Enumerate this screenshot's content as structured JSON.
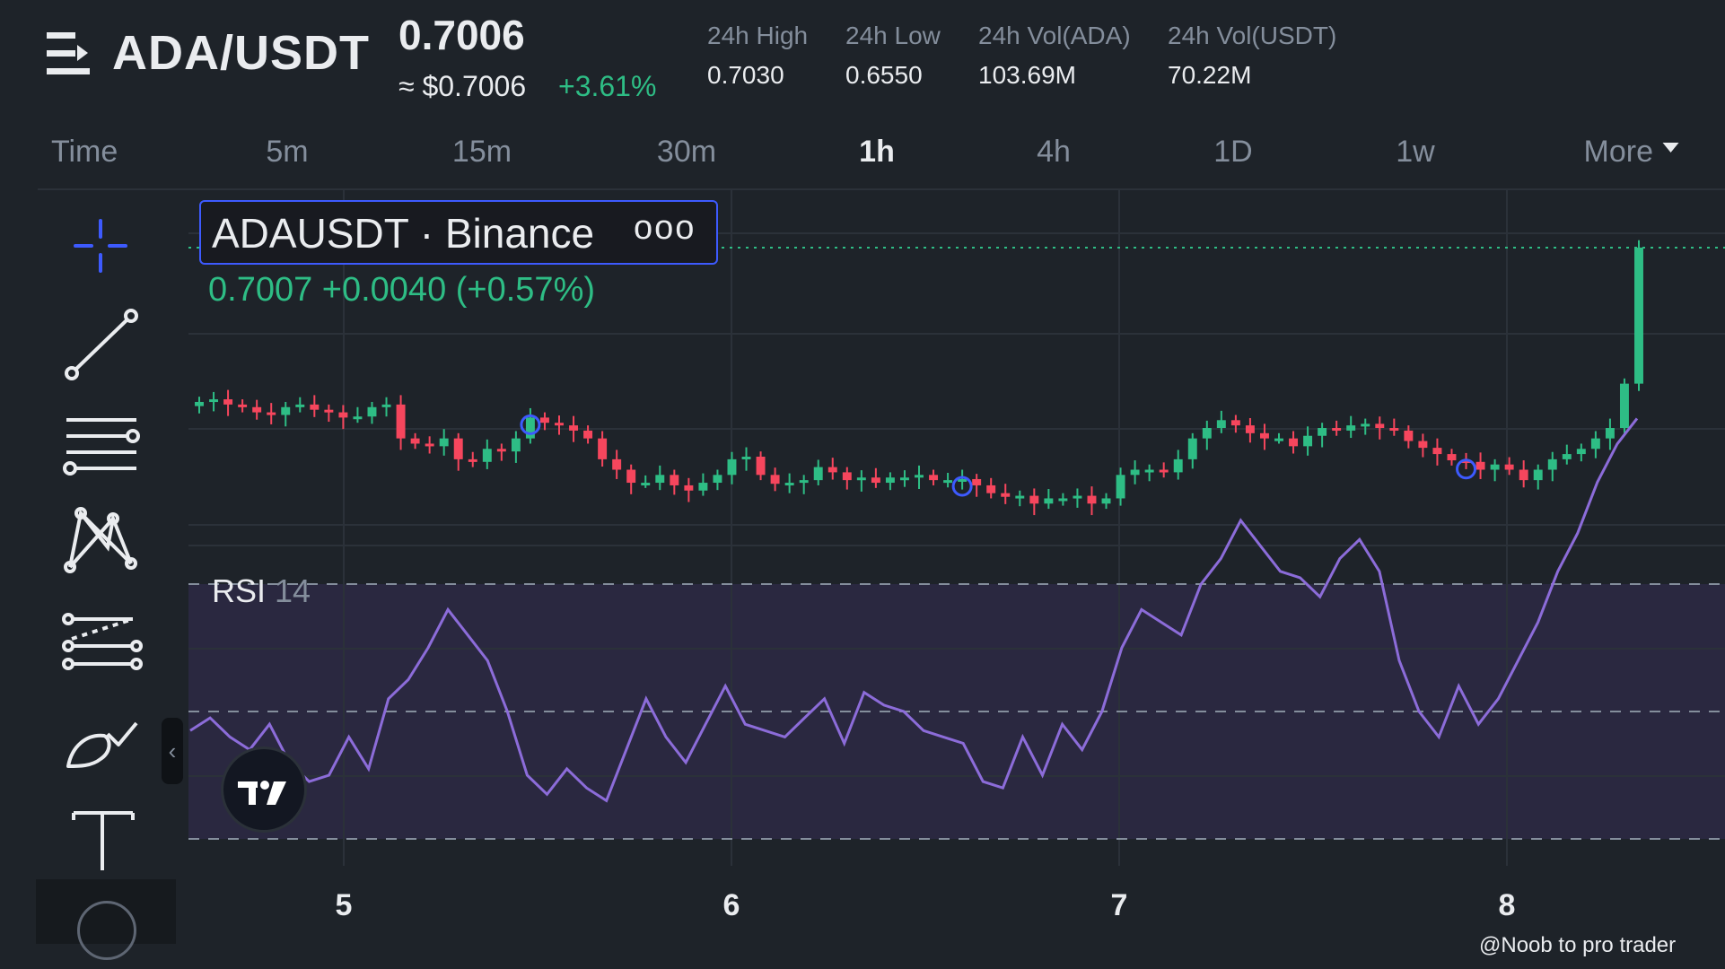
{
  "header": {
    "pair": "ADA/USDT",
    "last_price": "0.7006",
    "usd_price": "≈ $0.7006",
    "change_pct": "+3.61%",
    "stats": [
      {
        "label": "24h High",
        "value": "0.7030"
      },
      {
        "label": "24h Low",
        "value": "0.6550"
      },
      {
        "label": "24h Vol(ADA)",
        "value": "103.69M"
      },
      {
        "label": "24h Vol(USDT)",
        "value": "70.22M"
      }
    ]
  },
  "timeframes": {
    "items": [
      "Time",
      "5m",
      "15m",
      "30m",
      "1h",
      "4h",
      "1D",
      "1w",
      "More"
    ],
    "active": "1h"
  },
  "toolbar": {
    "tools": [
      "crosshair-icon",
      "trend-line-icon",
      "horizontal-lines-icon",
      "pattern-icon",
      "fib-lines-icon",
      "brush-icon",
      "text-icon"
    ],
    "collapse_glyph": "‹"
  },
  "chart": {
    "legend_symbol": "ADAUSDT · Binance",
    "legend_more": "ooo",
    "ohlc_readout": "0.7007  +0.0040 (+0.57%)",
    "rsi_label": "RSI",
    "rsi_length": "14",
    "date_labels": [
      "5",
      "6",
      "7",
      "8"
    ],
    "watermark": "@Noob to pro trader",
    "colors": {
      "up": "#2ebd85",
      "down": "#f6465d",
      "rsi": "#8c6cd9",
      "rsi_band": "#2a2840",
      "price_line": "#2ebd85"
    }
  },
  "chart_data": [
    {
      "type": "candlestick",
      "title": "ADAUSDT · Binance",
      "interval": "1h",
      "x_ticks": [
        "5",
        "6",
        "7",
        "8"
      ],
      "closes": [
        0.671,
        0.6715,
        0.6705,
        0.67,
        0.669,
        0.6685,
        0.67,
        0.6705,
        0.6695,
        0.669,
        0.668,
        0.6682,
        0.67,
        0.6705,
        0.664,
        0.663,
        0.6625,
        0.664,
        0.66,
        0.6595,
        0.662,
        0.6615,
        0.664,
        0.668,
        0.667,
        0.6665,
        0.6655,
        0.664,
        0.66,
        0.658,
        0.6555,
        0.6555,
        0.657,
        0.655,
        0.654,
        0.6555,
        0.657,
        0.66,
        0.6605,
        0.657,
        0.6553,
        0.6555,
        0.656,
        0.6585,
        0.6575,
        0.656,
        0.6565,
        0.6555,
        0.6565,
        0.6565,
        0.657,
        0.656,
        0.656,
        0.6562,
        0.655,
        0.6535,
        0.6528,
        0.653,
        0.6515,
        0.6525,
        0.6525,
        0.653,
        0.6515,
        0.6525,
        0.657,
        0.658,
        0.658,
        0.6575,
        0.66,
        0.664,
        0.666,
        0.6675,
        0.6665,
        0.665,
        0.664,
        0.664,
        0.6625,
        0.6645,
        0.666,
        0.6655,
        0.6665,
        0.6668,
        0.666,
        0.6655,
        0.6635,
        0.6622,
        0.661,
        0.6598,
        0.6595,
        0.658,
        0.659,
        0.658,
        0.656,
        0.658,
        0.66,
        0.661,
        0.662,
        0.664,
        0.666,
        0.6745,
        0.7006
      ],
      "ylim": [
        0.65,
        0.703
      ]
    },
    {
      "type": "line",
      "title": "RSI 14",
      "series": [
        {
          "name": "RSI",
          "values": [
            47,
            49,
            46,
            44,
            48,
            42,
            39,
            40,
            46,
            41,
            52,
            55,
            60,
            66,
            62,
            58,
            50,
            40,
            37,
            41,
            38,
            36,
            44,
            52,
            46,
            42,
            48,
            54,
            48,
            47,
            46,
            49,
            52,
            45,
            53,
            51,
            50,
            47,
            46,
            45,
            39,
            38,
            46,
            40,
            48,
            44,
            50,
            60,
            66,
            64,
            62,
            70,
            74,
            80,
            76,
            72,
            71,
            68,
            74,
            77,
            72,
            58,
            50,
            46,
            54,
            48,
            52,
            58,
            64,
            72,
            78,
            86,
            92,
            96
          ]
        }
      ],
      "levels": [
        70,
        50,
        30
      ],
      "ylim": [
        25,
        95
      ]
    }
  ]
}
